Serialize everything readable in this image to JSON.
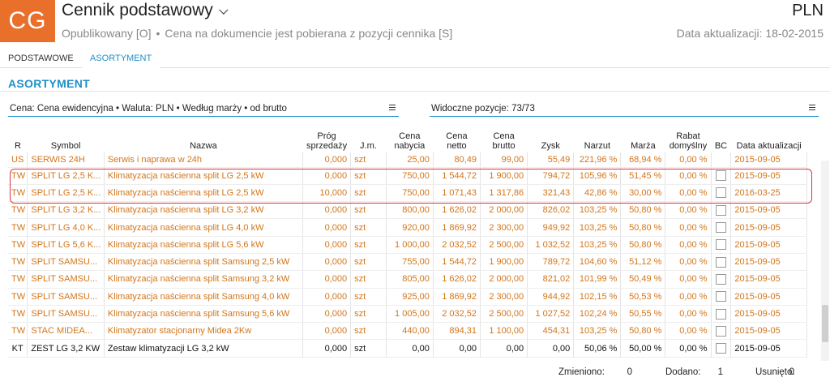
{
  "header": {
    "logo": "CG",
    "title": "Cennik podstawowy",
    "currency": "PLN",
    "status": "Opublikowany [O]",
    "source_note": "Cena na dokumencie jest pobierana z pozycji cennika [S]",
    "updated": "Data aktualizacji: 18-02-2015"
  },
  "tabs": [
    {
      "label": "PODSTAWOWE",
      "active": false
    },
    {
      "label": "ASORTYMENT",
      "active": true
    }
  ],
  "section_title": "ASORTYMENT",
  "filters": {
    "price_filter": "Cena: Cena ewidencyjna • Waluta: PLN • Według marży • od brutto",
    "visible_positions": "Widoczne pozycje: 73/73"
  },
  "table": {
    "columns": [
      "R",
      "Symbol",
      "Nazwa",
      "Próg sprzedaży",
      "J.m.",
      "Cena nabycia",
      "Cena netto",
      "Cena brutto",
      "Zysk",
      "Narzut",
      "Marża",
      "Rabat domyślny",
      "BC",
      "Data aktualizacji"
    ],
    "rows": [
      {
        "color": "orange",
        "cb": false,
        "cells": [
          "US",
          "SERWIS 24H",
          "Serwis i naprawa w 24h",
          "0,000",
          "szt",
          "25,00",
          "80,49",
          "99,00",
          "55,49",
          "221,96 %",
          "68,94 %",
          "0,00 %",
          "2015-09-05"
        ]
      },
      {
        "color": "orange",
        "cb": true,
        "cells": [
          "TW",
          "SPLIT LG 2,5 K...",
          "Klimatyzacja naścienna split LG 2,5 kW",
          "0,000",
          "szt",
          "750,00",
          "1 544,72",
          "1 900,00",
          "794,72",
          "105,96 %",
          "51,45 %",
          "0,00 %",
          "2015-09-05"
        ]
      },
      {
        "color": "orange",
        "cb": true,
        "cells": [
          "TW",
          "SPLIT LG 2,5 K...",
          "Klimatyzacja naścienna split LG 2,5 kW",
          "10,000",
          "szt",
          "750,00",
          "1 071,43",
          "1 317,86",
          "321,43",
          "42,86 %",
          "30,00 %",
          "0,00 %",
          "2016-03-25"
        ]
      },
      {
        "color": "orange",
        "cb": true,
        "cells": [
          "TW",
          "SPLIT LG 3,2 K...",
          "Klimatyzacja naścienna split LG 3,2 kW",
          "0,000",
          "szt",
          "800,00",
          "1 626,02",
          "2 000,00",
          "826,02",
          "103,25 %",
          "50,80 %",
          "0,00 %",
          "2015-09-05"
        ]
      },
      {
        "color": "orange",
        "cb": true,
        "cells": [
          "TW",
          "SPLIT LG 4,0 K...",
          "Klimatyzacja naścienna split LG 4,0 kW",
          "0,000",
          "szt",
          "920,00",
          "1 869,92",
          "2 300,00",
          "949,92",
          "103,25 %",
          "50,80 %",
          "0,00 %",
          "2015-09-05"
        ]
      },
      {
        "color": "orange",
        "cb": true,
        "cells": [
          "TW",
          "SPLIT LG 5,6 K...",
          "Klimatyzacja naścienna split LG 5,6 kW",
          "0,000",
          "szt",
          "1 000,00",
          "2 032,52",
          "2 500,00",
          "1 032,52",
          "103,25 %",
          "50,80 %",
          "0,00 %",
          "2015-09-05"
        ]
      },
      {
        "color": "orange",
        "cb": true,
        "cells": [
          "TW",
          "SPLIT SAMSU...",
          "Klimatyzacja naścienna split Samsung 2,5 kW",
          "0,000",
          "szt",
          "755,00",
          "1 544,72",
          "1 900,00",
          "789,72",
          "104,60 %",
          "51,12 %",
          "0,00 %",
          "2015-09-05"
        ]
      },
      {
        "color": "orange",
        "cb": true,
        "cells": [
          "TW",
          "SPLIT SAMSU...",
          "Klimatyzacja naścienna split Samsung 3,2 kW",
          "0,000",
          "szt",
          "805,00",
          "1 626,02",
          "2 000,00",
          "821,02",
          "101,99 %",
          "50,49 %",
          "0,00 %",
          "2015-09-05"
        ]
      },
      {
        "color": "orange",
        "cb": true,
        "cells": [
          "TW",
          "SPLIT SAMSU...",
          "Klimatyzacja naścienna split Samsung 4,0 kW",
          "0,000",
          "szt",
          "925,00",
          "1 869,92",
          "2 300,00",
          "944,92",
          "102,15 %",
          "50,53 %",
          "0,00 %",
          "2015-09-05"
        ]
      },
      {
        "color": "orange",
        "cb": true,
        "cells": [
          "TW",
          "SPLIT SAMSU...",
          "Klimatyzacja naścienna split Samsung 5,6 kW",
          "0,000",
          "szt",
          "1 005,00",
          "2 032,52",
          "2 500,00",
          "1 027,52",
          "102,24 %",
          "50,55 %",
          "0,00 %",
          "2015-09-05"
        ]
      },
      {
        "color": "orange",
        "cb": true,
        "cells": [
          "TW",
          "STAC MIDEA...",
          "Klimatyzator stacjonarny Midea 2Kw",
          "0,000",
          "szt",
          "440,00",
          "894,31",
          "1 100,00",
          "454,31",
          "103,25 %",
          "50,80 %",
          "0,00 %",
          "2015-09-05"
        ]
      },
      {
        "color": "black",
        "cb": true,
        "cells": [
          "KT",
          "ZEST LG 3,2 KW",
          "Zestaw klimatyzacji LG 3,2 kW",
          "0,000",
          "szt",
          "0,00",
          "0,00",
          "0,00",
          "0,00",
          "50,06 %",
          "50,00 %",
          "0,00 %",
          "2015-09-05"
        ]
      }
    ]
  },
  "footer": {
    "changed_label": "Zmieniono:",
    "changed_value": "0",
    "added_label": "Dodano:",
    "added_value": "1",
    "removed_label": "Usunięto:",
    "removed_value": "0"
  },
  "colors": {
    "logo_bg": "#e8702a",
    "accent": "#1e90c8",
    "row_text_orange": "#d2761b",
    "highlight_border": "#d8343f"
  }
}
